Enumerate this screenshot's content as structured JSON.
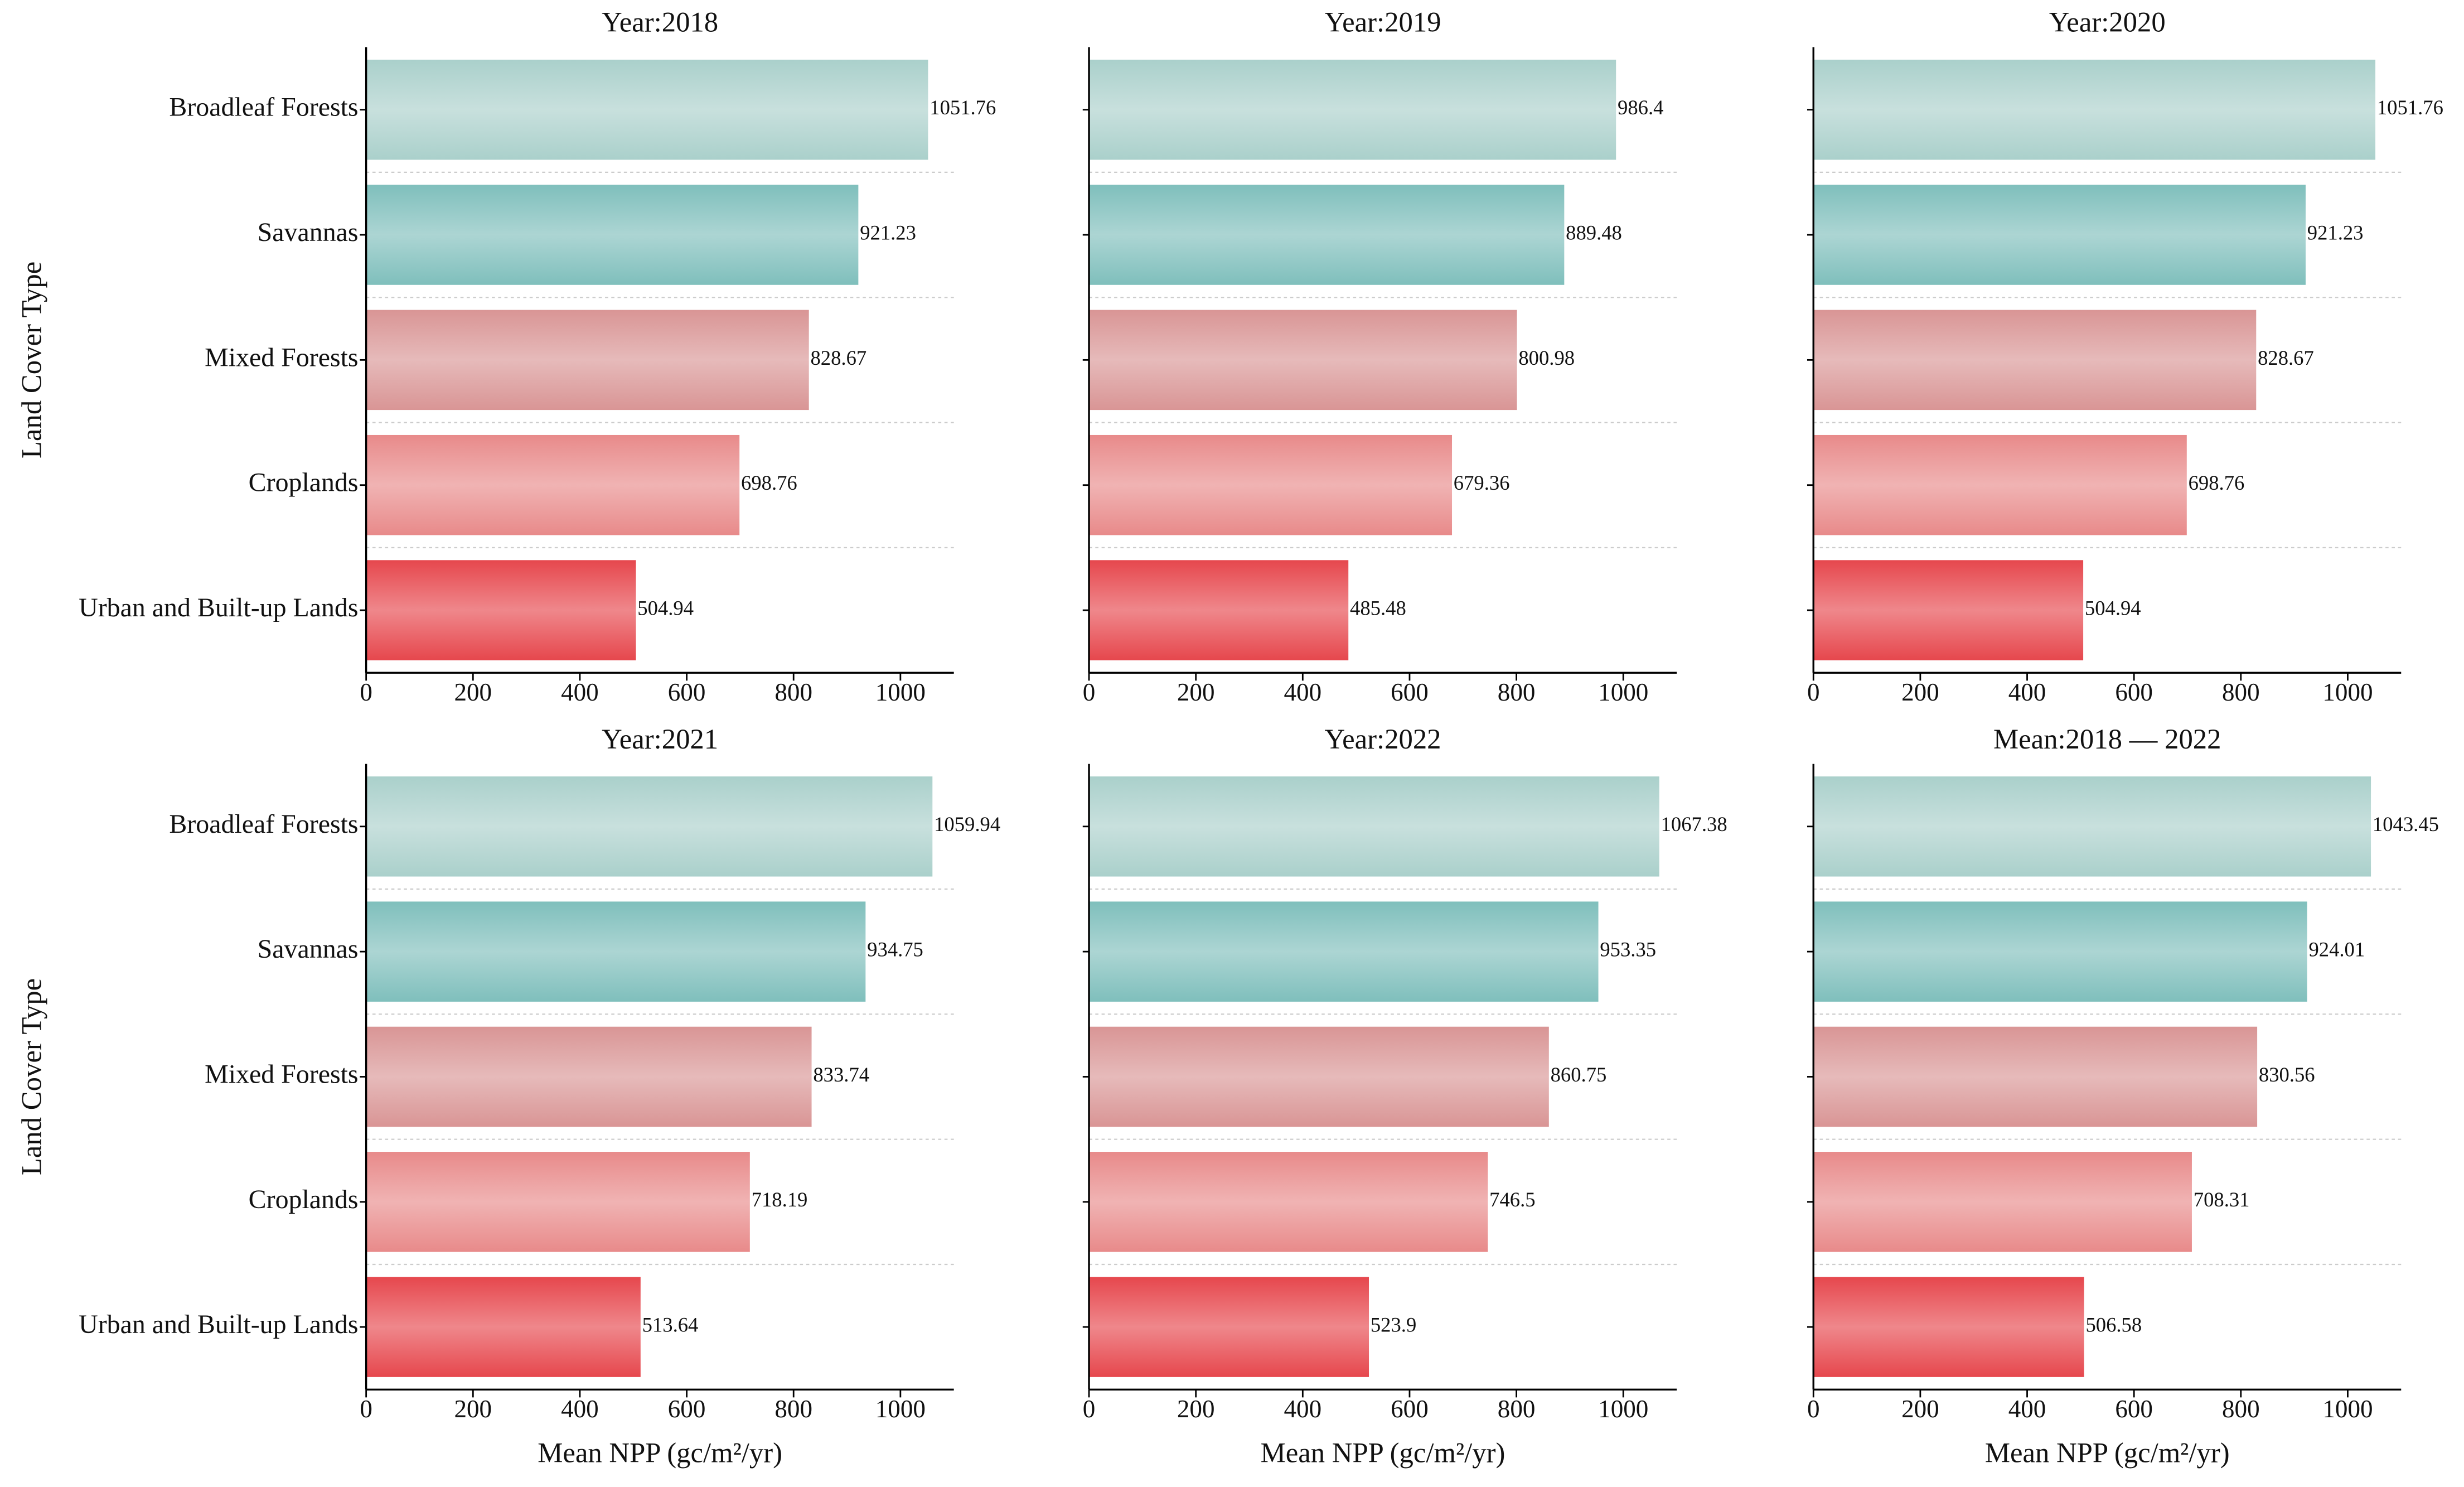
{
  "chart_data": [
    {
      "type": "bar",
      "orientation": "horizontal",
      "title": "Year:2018",
      "ylabel": "Land Cover Type",
      "categories": [
        "Broadleaf Forests",
        "Savannas",
        "Mixed Forests",
        "Croplands",
        "Urban and Built-up Lands"
      ],
      "values": [
        1051.76,
        921.23,
        828.67,
        698.76,
        504.94
      ],
      "colors": [
        "#aad0cb",
        "#7fbfbc",
        "#d99595",
        "#e88a8a",
        "#e6474d"
      ],
      "xlim": [
        0,
        1100
      ],
      "xticks": [
        0,
        200,
        400,
        600,
        800,
        1000
      ]
    },
    {
      "type": "bar",
      "orientation": "horizontal",
      "title": "Year:2019",
      "values": [
        986.4,
        889.48,
        800.98,
        679.36,
        485.48
      ],
      "colors": [
        "#aad0cb",
        "#7fbfbc",
        "#d99595",
        "#e88a8a",
        "#e6474d"
      ],
      "xlim": [
        0,
        1100
      ],
      "xticks": [
        0,
        200,
        400,
        600,
        800,
        1000
      ]
    },
    {
      "type": "bar",
      "orientation": "horizontal",
      "title": "Year:2020",
      "values": [
        1051.76,
        921.23,
        828.67,
        698.76,
        504.94
      ],
      "colors": [
        "#aad0cb",
        "#7fbfbc",
        "#d99595",
        "#e88a8a",
        "#e6474d"
      ],
      "xlim": [
        0,
        1100
      ],
      "xticks": [
        0,
        200,
        400,
        600,
        800,
        1000
      ]
    },
    {
      "type": "bar",
      "orientation": "horizontal",
      "title": "Year:2021",
      "ylabel": "Land Cover Type",
      "xlabel": "Mean NPP (gc/m²/yr)",
      "categories": [
        "Broadleaf Forests",
        "Savannas",
        "Mixed Forests",
        "Croplands",
        "Urban and Built-up Lands"
      ],
      "values": [
        1059.94,
        934.75,
        833.74,
        718.19,
        513.64
      ],
      "colors": [
        "#aad0cb",
        "#7fbfbc",
        "#d99595",
        "#e88a8a",
        "#e6474d"
      ],
      "xlim": [
        0,
        1100
      ],
      "xticks": [
        0,
        200,
        400,
        600,
        800,
        1000
      ]
    },
    {
      "type": "bar",
      "orientation": "horizontal",
      "title": "Year:2022",
      "xlabel": "Mean NPP (gc/m²/yr)",
      "values": [
        1067.38,
        953.35,
        860.75,
        746.5,
        523.9
      ],
      "colors": [
        "#aad0cb",
        "#7fbfbc",
        "#d99595",
        "#e88a8a",
        "#e6474d"
      ],
      "xlim": [
        0,
        1100
      ],
      "xticks": [
        0,
        200,
        400,
        600,
        800,
        1000
      ]
    },
    {
      "type": "bar",
      "orientation": "horizontal",
      "title": "Mean:2018 — 2022",
      "xlabel": "Mean NPP (gc/m²/yr)",
      "values": [
        1043.45,
        924.01,
        830.56,
        708.31,
        506.58
      ],
      "colors": [
        "#aad0cb",
        "#7fbfbc",
        "#d99595",
        "#e88a8a",
        "#e6474d"
      ],
      "xlim": [
        0,
        1100
      ],
      "xticks": [
        0,
        200,
        400,
        600,
        800,
        1000
      ]
    }
  ]
}
